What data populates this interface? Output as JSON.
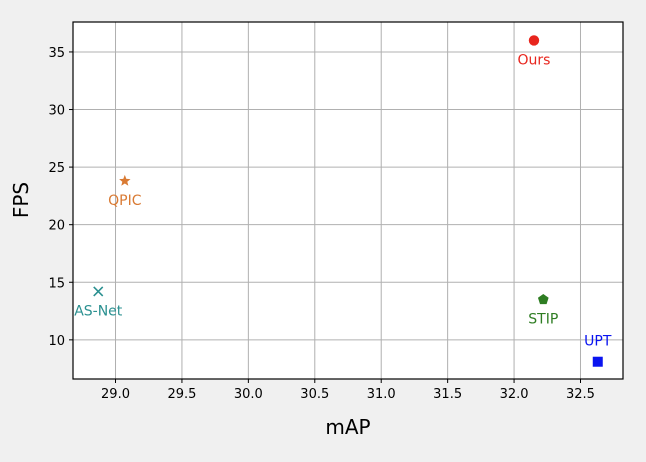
{
  "chart_data": {
    "type": "scatter",
    "xlabel": "mAP",
    "ylabel": "FPS",
    "xlim": [
      28.68,
      32.82
    ],
    "ylim": [
      6.6,
      37.6
    ],
    "xticks": [
      29.0,
      29.5,
      30.0,
      30.5,
      31.0,
      31.5,
      32.0,
      32.5
    ],
    "xtick_labels": [
      "29.0",
      "29.5",
      "30.0",
      "30.5",
      "31.0",
      "31.5",
      "32.0",
      "32.5"
    ],
    "yticks": [
      10,
      15,
      20,
      25,
      30,
      35
    ],
    "ytick_labels": [
      "10",
      "15",
      "20",
      "25",
      "30",
      "35"
    ],
    "grid": true,
    "points": [
      {
        "label": "Ours",
        "x": 32.15,
        "y": 36.0,
        "color": "#e8251d",
        "marker": "circle",
        "label_position": "below"
      },
      {
        "label": "QPIC",
        "x": 29.07,
        "y": 23.8,
        "color": "#d97a33",
        "marker": "star",
        "label_position": "below"
      },
      {
        "label": "AS-Net",
        "x": 28.87,
        "y": 14.2,
        "color": "#2a9090",
        "marker": "x",
        "label_position": "below"
      },
      {
        "label": "STIP",
        "x": 32.22,
        "y": 13.5,
        "color": "#2e7d22",
        "marker": "pentagon",
        "label_position": "below"
      },
      {
        "label": "UPT",
        "x": 32.63,
        "y": 8.1,
        "color": "#0a14f0",
        "marker": "square",
        "label_position": "above"
      }
    ]
  }
}
